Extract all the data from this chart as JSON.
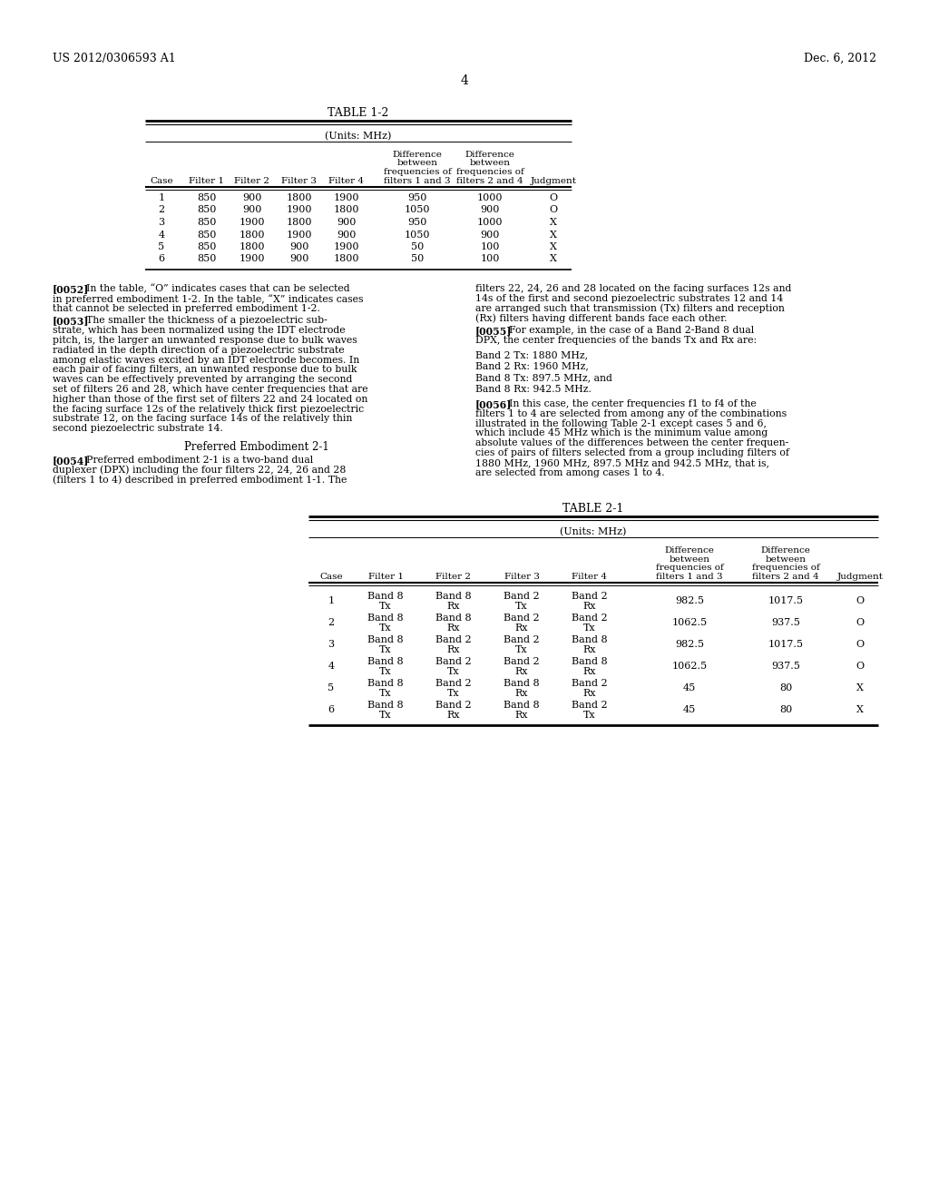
{
  "header_left": "US 2012/0306593 A1",
  "header_right": "Dec. 6, 2012",
  "page_number": "4",
  "bg_color": "#ffffff",
  "table1_title": "TABLE 1-2",
  "table1_units": "(Units: MHz)",
  "table1_rows": [
    [
      "1",
      "850",
      "900",
      "1800",
      "1900",
      "950",
      "1000",
      "O"
    ],
    [
      "2",
      "850",
      "900",
      "1900",
      "1800",
      "1050",
      "900",
      "O"
    ],
    [
      "3",
      "850",
      "1900",
      "1800",
      "900",
      "950",
      "1000",
      "X"
    ],
    [
      "4",
      "850",
      "1800",
      "1900",
      "900",
      "1050",
      "900",
      "X"
    ],
    [
      "5",
      "850",
      "1800",
      "900",
      "1900",
      "50",
      "100",
      "X"
    ],
    [
      "6",
      "850",
      "1900",
      "900",
      "1800",
      "50",
      "100",
      "X"
    ]
  ],
  "para_0052_label": "[0052]",
  "para_0052_lines": [
    "In the table, “O” indicates cases that can be selected",
    "in preferred embodiment 1-2. In the table, “X” indicates cases",
    "that cannot be selected in preferred embodiment 1-2."
  ],
  "para_0053_label": "[0053]",
  "para_0053_lines": [
    "The smaller the thickness of a piezoelectric sub-",
    "strate, which has been normalized using the IDT electrode",
    "pitch, is, the larger an unwanted response due to bulk waves",
    "radiated in the depth direction of a piezoelectric substrate",
    "among elastic waves excited by an IDT electrode becomes. In",
    "each pair of facing filters, an unwanted response due to bulk",
    "waves can be effectively prevented by arranging the second",
    "set of filters 26 and 28, which have center frequencies that are",
    "higher than those of the first set of filters 22 and 24 located on",
    "the facing surface 12s of the relatively thick first piezoelectric",
    "substrate 12, on the facing surface 14s of the relatively thin",
    "second piezoelectric substrate 14."
  ],
  "pref_emb_title": "Preferred Embodiment 2-1",
  "para_0054_label": "[0054]",
  "para_0054_lines": [
    "Preferred embodiment 2-1 is a two-band dual",
    "duplexer (DPX) including the four filters 22, 24, 26 and 28",
    "(filters 1 to 4) described in preferred embodiment 1-1. The"
  ],
  "para_right_top_lines": [
    "filters 22, 24, 26 and 28 located on the facing surfaces 12s and",
    "14s of the first and second piezoelectric substrates 12 and 14",
    "are arranged such that transmission (Tx) filters and reception",
    "(Rx) filters having different bands face each other."
  ],
  "para_0055_label": "[0055]",
  "para_0055_lines": [
    "For example, in the case of a Band 2-Band 8 dual",
    "DPX, the center frequencies of the bands Tx and Rx are:"
  ],
  "band_lines": [
    "Band 2 Tx: 1880 MHz,",
    "Band 2 Rx: 1960 MHz,",
    "Band 8 Tx: 897.5 MHz, and",
    "Band 8 Rx: 942.5 MHz."
  ],
  "para_0056_label": "[0056]",
  "para_0056_lines": [
    "In this case, the center frequencies f1 to f4 of the",
    "filters 1 to 4 are selected from among any of the combinations",
    "illustrated in the following Table 2-1 except cases 5 and 6,",
    "which include 45 MHz which is the minimum value among",
    "absolute values of the differences between the center frequen-",
    "cies of pairs of filters selected from a group including filters of",
    "1880 MHz, 1960 MHz, 897.5 MHz and 942.5 MHz, that is,",
    "are selected from among cases 1 to 4."
  ],
  "table2_title": "TABLE 2-1",
  "table2_units": "(Units: MHz)",
  "table2_rows": [
    [
      "1",
      "Band 8\nTx",
      "Band 8\nRx",
      "Band 2\nTx",
      "Band 2\nRx",
      "982.5",
      "1017.5",
      "O"
    ],
    [
      "2",
      "Band 8\nTx",
      "Band 8\nRx",
      "Band 2\nRx",
      "Band 2\nTx",
      "1062.5",
      "937.5",
      "O"
    ],
    [
      "3",
      "Band 8\nTx",
      "Band 2\nRx",
      "Band 2\nTx",
      "Band 8\nRx",
      "982.5",
      "1017.5",
      "O"
    ],
    [
      "4",
      "Band 8\nTx",
      "Band 2\nTx",
      "Band 2\nRx",
      "Band 8\nRx",
      "1062.5",
      "937.5",
      "O"
    ],
    [
      "5",
      "Band 8\nTx",
      "Band 2\nTx",
      "Band 8\nRx",
      "Band 2\nRx",
      "45",
      "80",
      "X"
    ],
    [
      "6",
      "Band 8\nTx",
      "Band 2\nRx",
      "Band 8\nRx",
      "Band 2\nTx",
      "45",
      "80",
      "X"
    ]
  ]
}
